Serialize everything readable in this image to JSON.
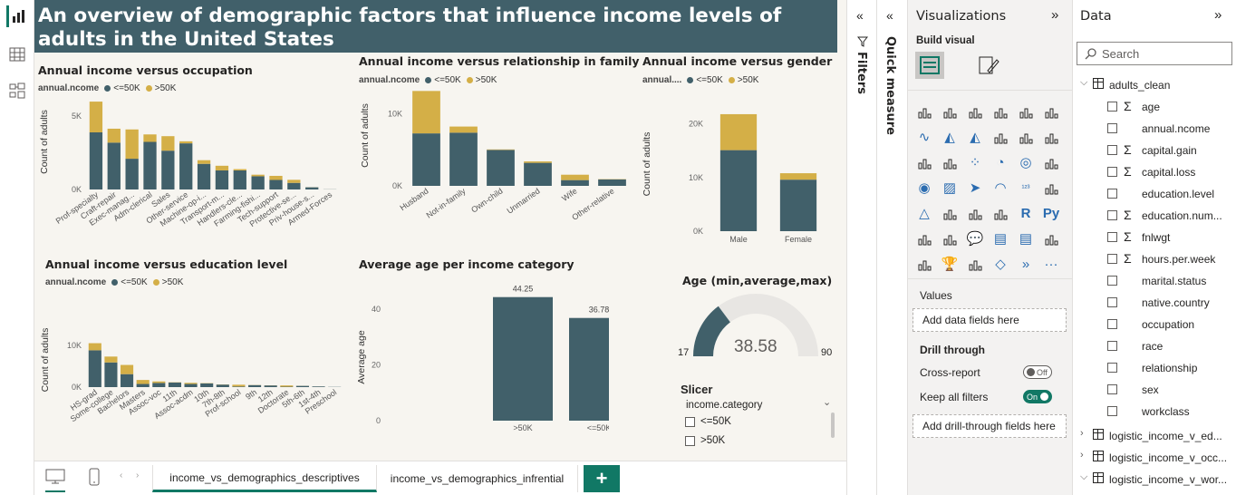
{
  "report": {
    "title": "An overview of demographic factors that influence income levels of adults in the United States"
  },
  "colors": {
    "low": "#41606a",
    "high": "#d4af47",
    "title_bg": "#41606a",
    "accent": "#117865"
  },
  "legend": {
    "field": "annual.ncome",
    "field_short": "annual....",
    "low": "<=50K",
    "high": ">50K"
  },
  "charts": {
    "occupation": {
      "title": "Annual income versus occupation",
      "ylabel": "Count of adults"
    },
    "relationship": {
      "title": "Annual income versus relationship in family",
      "ylabel": "Count of adults"
    },
    "gender": {
      "title": "Annual income versus gender",
      "ylabel": "Count of adults"
    },
    "education": {
      "title": "Annual income versus education level",
      "ylabel": "Count of adults"
    },
    "age": {
      "title": "Average age per income category",
      "ylabel": "Average age"
    },
    "gauge": {
      "title": "Age (min,average,max)",
      "min": "17",
      "value": "38.58",
      "max": "90"
    }
  },
  "chart_data": [
    {
      "type": "bar",
      "title": "Annual income versus occupation",
      "ylabel": "Count of adults",
      "stacked": true,
      "ylim": [
        0,
        6500
      ],
      "yticks": [
        "0K",
        "5K"
      ],
      "categories": [
        "Prof-specialty",
        "Craft-repair",
        "Exec-manag...",
        "Adm-clerical",
        "Sales",
        "Other-service",
        "Machine-op-i...",
        "Transport-m...",
        "Handlers-cle...",
        "Farming-fishi...",
        "Tech-support",
        "Protective-se...",
        "Priv-house-s...",
        "Armed-Forces"
      ],
      "series": [
        {
          "name": "<=50K",
          "values": [
            3900,
            3200,
            2100,
            3250,
            2650,
            3150,
            1750,
            1300,
            1300,
            900,
            650,
            450,
            150,
            10
          ]
        },
        {
          "name": ">50K",
          "values": [
            2100,
            950,
            2000,
            510,
            990,
            140,
            250,
            320,
            90,
            110,
            280,
            210,
            5,
            1
          ]
        }
      ]
    },
    {
      "type": "bar",
      "title": "Annual income versus relationship in family",
      "ylabel": "Count of adults",
      "stacked": true,
      "ylim": [
        0,
        14000
      ],
      "yticks": [
        "0K",
        "10K"
      ],
      "categories": [
        "Husband",
        "Not-in-family",
        "Own-child",
        "Unmarried",
        "Wife",
        "Other-relative"
      ],
      "series": [
        {
          "name": "<=50K",
          "values": [
            7300,
            7400,
            5000,
            3200,
            800,
            900
          ]
        },
        {
          "name": ">50K",
          "values": [
            5900,
            850,
            70,
            200,
            750,
            40
          ]
        }
      ]
    },
    {
      "type": "bar",
      "title": "Annual income versus gender",
      "ylabel": "Count of adults",
      "stacked": true,
      "ylim": [
        0,
        25000
      ],
      "yticks": [
        "0K",
        "10K",
        "20K"
      ],
      "categories": [
        "Male",
        "Female"
      ],
      "series": [
        {
          "name": "<=50K",
          "values": [
            15100,
            9600
          ]
        },
        {
          "name": ">50K",
          "values": [
            6700,
            1200
          ]
        }
      ]
    },
    {
      "type": "bar",
      "title": "Annual income versus education level",
      "ylabel": "Count of adults",
      "stacked": true,
      "ylim": [
        0,
        13000
      ],
      "yticks": [
        "0K",
        "10K"
      ],
      "categories": [
        "HS-grad",
        "Some-college",
        "Bachelors",
        "Masters",
        "Assoc-voc",
        "11th",
        "Assoc-acdm",
        "10th",
        "7th-8th",
        "Prof-school",
        "9th",
        "12th",
        "Doctorate",
        "5th-6th",
        "1st-4th",
        "Preschool"
      ],
      "series": [
        {
          "name": "<=50K",
          "values": [
            8800,
            5900,
            3100,
            750,
            1000,
            1100,
            750,
            900,
            600,
            150,
            480,
            400,
            100,
            300,
            160,
            50
          ]
        },
        {
          "name": ">50K",
          "values": [
            1700,
            1400,
            2200,
            960,
            360,
            60,
            270,
            60,
            40,
            420,
            30,
            30,
            300,
            15,
            5,
            0
          ]
        }
      ]
    },
    {
      "type": "bar",
      "title": "Average age per income category",
      "ylabel": "Average age",
      "ylim": [
        0,
        50
      ],
      "yticks": [
        "0",
        "20",
        "40"
      ],
      "categories": [
        ">50K",
        "<=50K"
      ],
      "values": [
        44.25,
        36.78
      ],
      "data_labels": [
        "44.25",
        "36.78"
      ]
    }
  ],
  "slicer": {
    "title": "Slicer",
    "field": "income.category",
    "options": [
      "<=50K",
      ">50K"
    ]
  },
  "bottom": {
    "tabs": [
      "income_vs_demographics_descriptives",
      "income_vs_demographics_infrential"
    ],
    "add_label": "+"
  },
  "panes": {
    "filters": "Filters",
    "quick_measure": "Quick measure",
    "visualizations": {
      "title": "Visualizations",
      "build_visual": "Build visual",
      "values": "Values",
      "add_data_fields": "Add data fields here",
      "drill_through": "Drill through",
      "cross_report": "Cross-report",
      "cross_report_state": "Off",
      "keep_all_filters": "Keep all filters",
      "keep_all_filters_state": "On",
      "add_drill": "Add drill-through fields here",
      "more": "..."
    },
    "data": {
      "title": "Data",
      "search_placeholder": "Search",
      "tables": [
        {
          "name": "adults_clean",
          "expanded": true,
          "fields": [
            {
              "name": "age",
              "sigma": true
            },
            {
              "name": "annual.ncome",
              "sigma": false
            },
            {
              "name": "capital.gain",
              "sigma": true
            },
            {
              "name": "capital.loss",
              "sigma": true
            },
            {
              "name": "education.level",
              "sigma": false
            },
            {
              "name": "education.num...",
              "sigma": true
            },
            {
              "name": "fnlwgt",
              "sigma": true
            },
            {
              "name": "hours.per.week",
              "sigma": true
            },
            {
              "name": "marital.status",
              "sigma": false
            },
            {
              "name": "native.country",
              "sigma": false
            },
            {
              "name": "occupation",
              "sigma": false
            },
            {
              "name": "race",
              "sigma": false
            },
            {
              "name": "relationship",
              "sigma": false
            },
            {
              "name": "sex",
              "sigma": false
            },
            {
              "name": "workclass",
              "sigma": false
            }
          ]
        },
        {
          "name": "logistic_income_v_ed...",
          "expanded": false
        },
        {
          "name": "logistic_income_v_occ...",
          "expanded": false
        },
        {
          "name": "logistic_income_v_wor...",
          "expanded": true
        }
      ]
    }
  }
}
